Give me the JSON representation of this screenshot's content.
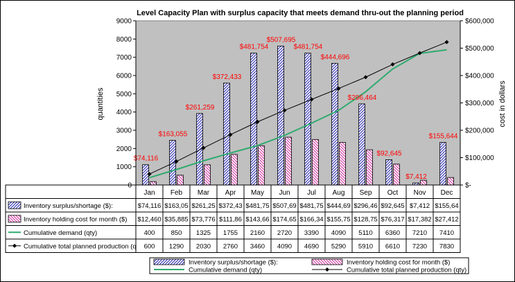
{
  "chart_data": {
    "type": "bar",
    "title": "Level Capacity Plan with surplus capacity that meets demand thru-out the planning period",
    "ylabel_left": "quantities",
    "ylabel_right": "cost in dollars",
    "ylim_left": [
      0,
      9000
    ],
    "ylim_right": [
      0,
      600000
    ],
    "left_ticks": [
      "9000",
      "8000",
      "7000",
      "6000",
      "5000",
      "4000",
      "3000",
      "2000",
      "1000",
      "0"
    ],
    "right_ticks": [
      "$600,000",
      "$500,000",
      "$400,000",
      "$300,000",
      "$200,000",
      "$100,000",
      "$-"
    ],
    "categories": [
      "Jan",
      "Feb",
      "Mar",
      "Apr",
      "May",
      "Jun",
      "Jul",
      "Aug",
      "Sep",
      "Oct",
      "Nov",
      "Dec"
    ],
    "grid": false,
    "legend_position": "bottom",
    "series": [
      {
        "name": "Inventory surplus/shortage ($):",
        "kind": "bar-hatched-blue",
        "axis": "right",
        "values": [
          74116,
          163055,
          261259,
          372433,
          481754,
          507695,
          481754,
          444696,
          296464,
          92645,
          7412,
          155644
        ],
        "data_labels": [
          "$74,116",
          "$163,055",
          "$261,259",
          "$372,433",
          "$481,754",
          "$507,695",
          "$481,754",
          "$444,696",
          "$296,464",
          "$92,645",
          "$7,412",
          "$155,644"
        ],
        "table_values": [
          "$74,116",
          "$163,05",
          "$261,25",
          "$372,43",
          "$481,75",
          "$507,69",
          "$481,75",
          "$444,69",
          "$296,46",
          "$92,645",
          "$7,412",
          "$155,64"
        ]
      },
      {
        "name": "Inventory holding cost for month ($)",
        "kind": "bar-hatched-pink",
        "axis": "right",
        "values": [
          12460,
          35885,
          73776,
          111860,
          143660,
          174650,
          166340,
          155750,
          128750,
          76317,
          17382,
          27412
        ],
        "table_values": [
          "$12,460",
          "$35,885",
          "$73,776",
          "$111,86",
          "$143,66",
          "$174,65",
          "$166,34",
          "$155,75",
          "$128,75",
          "$76,317",
          "$17,382",
          "$27,412"
        ]
      },
      {
        "name": "Cumulative demand (qty)",
        "kind": "line-green",
        "axis": "left",
        "values": [
          400,
          850,
          1325,
          1755,
          2160,
          2720,
          3390,
          4090,
          5110,
          6360,
          7210,
          7410
        ],
        "table_values": [
          "400",
          "850",
          "1325",
          "1755",
          "2160",
          "2720",
          "3390",
          "4090",
          "5110",
          "6360",
          "7210",
          "7410"
        ]
      },
      {
        "name": "Cumulative total planned production (qty)",
        "kind": "line-black-markers",
        "axis": "left",
        "values": [
          600,
          1290,
          2030,
          2760,
          3460,
          4090,
          4690,
          5290,
          5910,
          6610,
          7230,
          7830
        ],
        "table_values": [
          "600",
          "1290",
          "2030",
          "2760",
          "3460",
          "4090",
          "4690",
          "5290",
          "5910",
          "6610",
          "7230",
          "7830"
        ]
      }
    ],
    "table_row_labels": [
      "Inventory surplus/shortage ($):",
      "Inventory holding cost for month ($)",
      "Cumulative demand (qty)",
      "Cumulative total planned production (q"
    ],
    "legend_labels": [
      "Inventory surplus/shortage ($):",
      "Inventory holding cost for month ($)",
      "Cumulative demand (qty)",
      "Cumulative total planned production (qty)"
    ],
    "colors": {
      "plot_bg": "#c0c0c0",
      "bar_blue_hatch": "#1f1faa",
      "bar_pink_hatch": "#cc2a9a",
      "demand_line": "#2eaa6e",
      "production_line": "#000000",
      "data_label": "#ff0000"
    }
  }
}
